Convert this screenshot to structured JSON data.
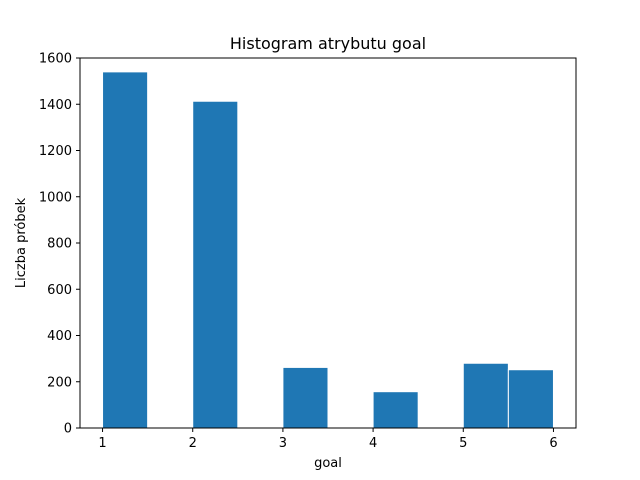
{
  "chart_data": {
    "type": "bar",
    "title": "Histogram atrybutu goal",
    "xlabel": "goal",
    "ylabel": "Liczba próbek",
    "xlim": [
      0.75,
      6.25
    ],
    "ylim": [
      0,
      1600
    ],
    "xticks": [
      1,
      2,
      3,
      4,
      5,
      6
    ],
    "yticks": [
      0,
      200,
      400,
      600,
      800,
      1000,
      1200,
      1400,
      1600
    ],
    "bins": [
      {
        "start": 1.0,
        "end": 1.5,
        "count": 1540
      },
      {
        "start": 1.5,
        "end": 2.0,
        "count": 0
      },
      {
        "start": 2.0,
        "end": 2.5,
        "count": 1413
      },
      {
        "start": 2.5,
        "end": 3.0,
        "count": 0
      },
      {
        "start": 3.0,
        "end": 3.5,
        "count": 262
      },
      {
        "start": 3.5,
        "end": 4.0,
        "count": 0
      },
      {
        "start": 4.0,
        "end": 4.5,
        "count": 157
      },
      {
        "start": 4.5,
        "end": 5.0,
        "count": 0
      },
      {
        "start": 5.0,
        "end": 5.5,
        "count": 280
      },
      {
        "start": 5.5,
        "end": 6.0,
        "count": 252
      }
    ],
    "bar_color": "#1f77b4",
    "edge_color": "#ffffff",
    "grid": false,
    "legend": "none"
  }
}
